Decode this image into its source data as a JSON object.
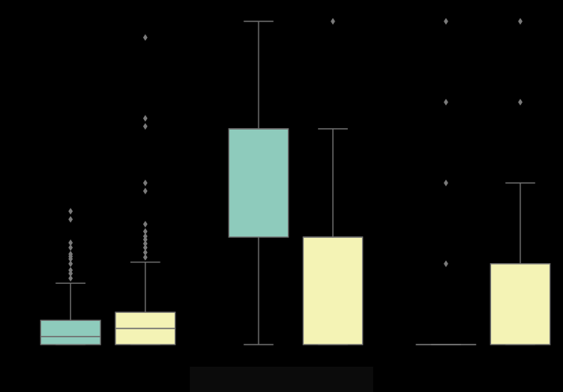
{
  "chart_data": [
    {
      "type": "box",
      "title": "",
      "xlabel": "",
      "ylabel": "",
      "ylim": [
        0,
        40
      ],
      "boxes": [
        {
          "color": "#8ecbbc",
          "q1": 0,
          "median": 1,
          "q3": 3,
          "whisker_low": 0,
          "whisker_high": 7.6,
          "fliers": [
            8.2,
            8.8,
            9.2,
            10.0,
            10.6,
            10.9,
            11.2,
            12.0,
            12.6,
            15.5,
            16.5
          ]
        },
        {
          "color": "#f4f3b5",
          "q1": 0,
          "median": 2,
          "q3": 4,
          "whisker_low": 0,
          "whisker_high": 10.2,
          "fliers": [
            10.8,
            11.4,
            12.0,
            12.5,
            13.0,
            13.4,
            14.0,
            14.9,
            19.0,
            20.0,
            27.0,
            28.0,
            38.0
          ]
        }
      ]
    },
    {
      "type": "box",
      "title": "",
      "xlabel": "",
      "ylabel": "",
      "ylim": [
        0,
        4
      ],
      "boxes": [
        {
          "color": "#8ecbbc",
          "q1": 1.33,
          "median": 2.67,
          "q3": 2.67,
          "whisker_low": 0,
          "whisker_high": 4,
          "fliers": []
        },
        {
          "color": "#f4f3b5",
          "q1": 0,
          "median": 1.33,
          "q3": 1.33,
          "whisker_low": 0,
          "whisker_high": 2.67,
          "fliers": [
            4
          ]
        }
      ]
    },
    {
      "type": "box",
      "title": "",
      "xlabel": "",
      "ylabel": "",
      "ylim": [
        0,
        4
      ],
      "boxes": [
        {
          "color": "#8ecbbc",
          "q1": 0,
          "median": 0,
          "q3": 0,
          "whisker_low": 0,
          "whisker_high": 0,
          "fliers": [
            1,
            2,
            3,
            4
          ]
        },
        {
          "color": "#f4f3b5",
          "q1": 0,
          "median": 1,
          "q3": 1,
          "whisker_low": 0,
          "whisker_high": 2,
          "fliers": [
            3,
            4
          ]
        }
      ]
    }
  ]
}
